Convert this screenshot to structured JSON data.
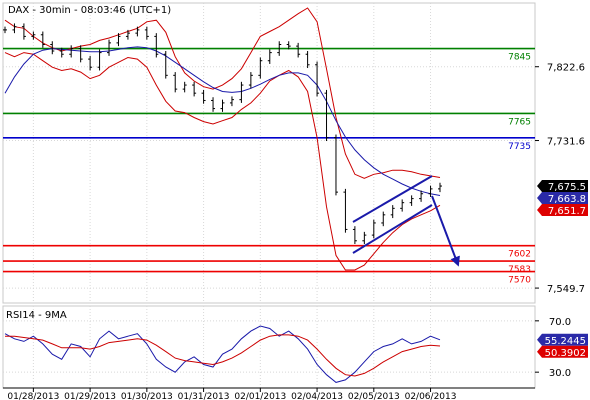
{
  "header": {
    "title": "DAX - 30min - 08:03:46 (UTC+1)"
  },
  "colors": {
    "price": "#000000",
    "bollinger": "#cc0000",
    "ma_blue": "#1a1aaa",
    "support_resistance_green": "#008000",
    "level_blue": "#0000cc",
    "level_red": "#ee0000",
    "rsi_line": "#1a1aaa",
    "rsi_signal": "#cc0000",
    "axis_badge_black": "#000000",
    "axis_badge_blue": "#2a2aa8",
    "axis_badge_red": "#dd0000"
  },
  "chart_data": [
    {
      "type": "line",
      "title": "DAX - 30min - 08:03:46 (UTC+1)",
      "ylim": [
        7535,
        7895
      ],
      "yticks": [
        "7,822.6",
        "7,731.6",
        "7,549.7"
      ],
      "ytick_values": [
        7822.6,
        7731.6,
        7549.7
      ],
      "xticks": [
        "01/28/2013",
        "01/29/2013",
        "01/30/2013",
        "01/31/2013",
        "02/01/2013",
        "02/04/2013",
        "02/05/2013",
        "02/06/2013"
      ],
      "grid": true,
      "levels": [
        {
          "label": "7845",
          "value": 7845,
          "color": "green"
        },
        {
          "label": "7765",
          "value": 7765,
          "color": "green"
        },
        {
          "label": "7735",
          "value": 7735,
          "color": "blue"
        },
        {
          "label": "7602",
          "value": 7602,
          "color": "red"
        },
        {
          "label": "7583",
          "value": 7583,
          "color": "red"
        },
        {
          "label": "7570",
          "value": 7570,
          "color": "red"
        }
      ],
      "axis_badges": [
        {
          "label": "7,675.5",
          "value": 7675.5,
          "color": "black"
        },
        {
          "label": "7,663.8",
          "value": 7663.8,
          "color": "blue"
        },
        {
          "label": "7,651.7",
          "value": 7651.7,
          "color": "red"
        }
      ],
      "series": [
        {
          "values": [
            7868,
            7872,
            7860,
            7862,
            7850,
            7842,
            7838,
            7845,
            7832,
            7822,
            7840,
            7852,
            7860,
            7864,
            7868,
            7860,
            7838,
            7812,
            7795,
            7800,
            7790,
            7781,
            7771,
            7778,
            7782,
            7800,
            7812,
            7830,
            7840,
            7850,
            7848,
            7838,
            7825,
            7790,
            7735,
            7668,
            7622,
            7608,
            7615,
            7630,
            7640,
            7648,
            7655,
            7660,
            7666,
            7672,
            7675.5
          ]
        },
        {
          "values": [
            7880,
            7872,
            7870,
            7860,
            7852,
            7846,
            7842,
            7845,
            7848,
            7850,
            7855,
            7858,
            7862,
            7866,
            7870,
            7878,
            7880,
            7865,
            7835,
            7815,
            7805,
            7798,
            7795,
            7800,
            7808,
            7820,
            7840,
            7860,
            7866,
            7872,
            7880,
            7888,
            7895,
            7878,
            7820,
            7760,
            7715,
            7690,
            7685,
            7690,
            7692,
            7695,
            7695,
            7693,
            7690,
            7688,
            7686
          ]
        },
        {
          "values": [
            7840,
            7835,
            7840,
            7838,
            7830,
            7822,
            7818,
            7820,
            7816,
            7808,
            7812,
            7822,
            7828,
            7834,
            7832,
            7822,
            7800,
            7780,
            7768,
            7766,
            7760,
            7755,
            7752,
            7756,
            7760,
            7770,
            7778,
            7790,
            7805,
            7812,
            7818,
            7810,
            7792,
            7735,
            7650,
            7590,
            7572,
            7572,
            7578,
            7592,
            7606,
            7618,
            7628,
            7635,
            7640,
            7645,
            7651.7
          ]
        },
        {
          "values": [
            7790,
            7810,
            7826,
            7838,
            7843,
            7845,
            7844,
            7843,
            7842,
            7841,
            7841,
            7842,
            7844,
            7846,
            7847,
            7846,
            7842,
            7836,
            7828,
            7820,
            7812,
            7804,
            7797,
            7792,
            7791,
            7792,
            7796,
            7801,
            7807,
            7812,
            7815,
            7815,
            7812,
            7800,
            7780,
            7756,
            7736,
            7720,
            7708,
            7698,
            7690,
            7684,
            7678,
            7673,
            7669,
            7666,
            7663.8
          ]
        }
      ]
    },
    {
      "type": "line",
      "title": "RSI14 - 9MA",
      "ylim": [
        20,
        80
      ],
      "yticks": [
        "70.0",
        "30.0"
      ],
      "ytick_values": [
        70,
        30
      ],
      "axis_badges": [
        {
          "label": "55.2445",
          "value": 55.2445,
          "color": "blue"
        },
        {
          "label": "50.3902",
          "value": 50.3902,
          "color": "red"
        }
      ],
      "series": [
        {
          "values": [
            60,
            56,
            54,
            58,
            52,
            44,
            40,
            52,
            50,
            42,
            56,
            62,
            56,
            58,
            60,
            52,
            40,
            34,
            30,
            38,
            42,
            36,
            34,
            44,
            48,
            56,
            62,
            66,
            64,
            58,
            62,
            56,
            48,
            36,
            28,
            22,
            24,
            30,
            38,
            46,
            50,
            52,
            56,
            52,
            54,
            58,
            55.2445
          ]
        },
        {
          "values": [
            58,
            58,
            57,
            56,
            55,
            52,
            49,
            49,
            49,
            48,
            50,
            53,
            54,
            55,
            56,
            55,
            51,
            46,
            41,
            39,
            38,
            37,
            36,
            38,
            41,
            45,
            50,
            55,
            58,
            59,
            59,
            58,
            55,
            48,
            40,
            33,
            28,
            27,
            29,
            33,
            38,
            42,
            46,
            48,
            50,
            51,
            50.3902
          ]
        }
      ]
    }
  ]
}
